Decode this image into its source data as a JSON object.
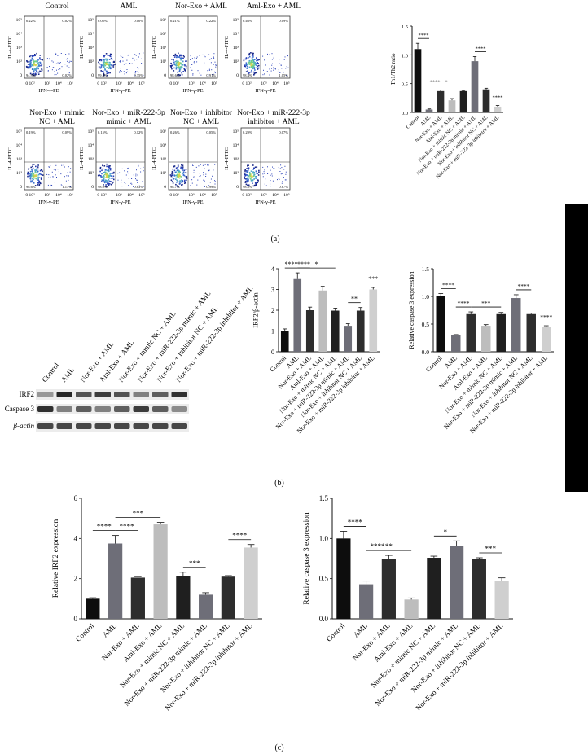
{
  "panel_letters": {
    "a": "(a)",
    "b": "(b)",
    "c": "(c)"
  },
  "flow": {
    "ylabel": "IL-4-FITC",
    "xlabel": "IFN-γ-PE",
    "xticks": [
      "0 10²",
      "10³",
      "10⁴",
      "10⁵"
    ],
    "yticks": [
      "10⁵",
      "10⁴",
      "10³",
      "10²",
      "0"
    ],
    "plots": [
      {
        "title": [
          "Control"
        ],
        "quads": [
          "0.22%",
          "0.02%",
          "94.9%",
          "0.02%"
        ]
      },
      {
        "title": [
          "AML"
        ],
        "quads": [
          "0.05%",
          "0.00%",
          "99.4%",
          "0.35%"
        ]
      },
      {
        "title": [
          "Nor-Exo + AML"
        ],
        "quads": [
          "0.21%",
          "0.22%",
          "98.6%",
          "0.91%"
        ]
      },
      {
        "title": [
          "Aml-Exo + AML"
        ],
        "quads": [
          "0.46%",
          "0.09%",
          "98.4%",
          "1.05%"
        ]
      },
      {
        "title": [
          "Nor-Exo + mimic",
          "NC + AML"
        ],
        "quads": [
          "0.19%",
          "0.09%",
          "98.6%",
          "1.13%"
        ]
      },
      {
        "title": [
          "Nor-Exo + miR-222-3p",
          "mimic + AML"
        ],
        "quads": [
          "0.15%",
          "0.12%",
          "98.9%",
          "0.83%"
        ]
      },
      {
        "title": [
          "Nor-Exo + inhibitor",
          "NC + AML"
        ],
        "quads": [
          "0.26%",
          "0.05%",
          "98.7%",
          "0.99%"
        ]
      },
      {
        "title": [
          "Nor-Exo + miR-222-3p",
          "inhibitor + AML"
        ],
        "quads": [
          "0.29%",
          "0.07%",
          "98.8%",
          "0.87%"
        ]
      }
    ]
  },
  "western": {
    "lanes": [
      "Control",
      "AML",
      "Nor-Exo + AML",
      "Aml-Exo + AML",
      "Nor-Exo + mimic NC + AML",
      "Nor-Exo + miR-222-3p mimic + AML",
      "Nor-Exo + inhibitor NC + AML",
      "Nor-Exo + miR-222-3p inhibitor + AML"
    ],
    "rows": [
      "IRF2",
      "Caspase 3",
      "β-actin"
    ],
    "intensity": [
      [
        0.45,
        0.95,
        0.75,
        0.85,
        0.75,
        0.55,
        0.7,
        0.9
      ],
      [
        0.9,
        0.55,
        0.7,
        0.55,
        0.7,
        0.85,
        0.7,
        0.5
      ],
      [
        0.8,
        0.8,
        0.8,
        0.8,
        0.8,
        0.8,
        0.8,
        0.8
      ]
    ]
  },
  "chart_data": [
    {
      "id": "th1th2",
      "type": "bar",
      "ylabel": "Th1/Th2 ratio",
      "ylim": [
        0,
        1.5
      ],
      "yticks": [
        0.0,
        0.5,
        1.0,
        1.5
      ],
      "categories": [
        "Control",
        "AML",
        "Nor-Exo + AML",
        "Aml-Exo + AML",
        "Nor-Exo + mimic NC + AML",
        "Nor-Exo + miR-222-3p mimic + AML",
        "Nor-Exo + inhibitor NC + AML",
        "Nor-Exo + miR-222-3p inhibitor + AML"
      ],
      "values": [
        1.1,
        0.05,
        0.37,
        0.21,
        0.37,
        0.89,
        0.4,
        0.1
      ],
      "errors": [
        0.1,
        0.01,
        0.02,
        0.03,
        0.01,
        0.08,
        0.02,
        0.02
      ],
      "colors": [
        "#0d0d0d",
        "#6e6e78",
        "#2d2d2d",
        "#bdbdbd",
        "#1f1f1f",
        "#6e6e78",
        "#2d2d2d",
        "#cfcfcf"
      ],
      "significance": [
        {
          "from": 0,
          "to": 1,
          "label": "****"
        },
        {
          "from": 1,
          "to": 2,
          "label": "****"
        },
        {
          "from": 1,
          "to": 4,
          "label": "*"
        },
        {
          "from": 5,
          "to": 6,
          "label": "****"
        },
        {
          "from": 7,
          "to": 8,
          "label": "****"
        }
      ]
    },
    {
      "id": "irf2_wb",
      "type": "bar",
      "ylabel": "IRF2/β-actin",
      "ylim": [
        0,
        4
      ],
      "yticks": [
        0,
        1,
        2,
        3,
        4
      ],
      "categories": [
        "Control",
        "AML",
        "Nor-Exo + AML",
        "Aml-Exo + AML",
        "Nor-Exo + mimic NC + AML",
        "Nor-Exo + miR-222-3p mimic + AML",
        "Nor-Exo + inhibitor NC + AML",
        "Nor-Exo + miR-222-3p inhibitor + AML"
      ],
      "values": [
        1.0,
        3.5,
        2.0,
        2.95,
        1.98,
        1.25,
        1.98,
        3.0
      ],
      "errors": [
        0.1,
        0.3,
        0.15,
        0.2,
        0.12,
        0.1,
        0.15,
        0.1
      ],
      "colors": [
        "#0d0d0d",
        "#6e6e78",
        "#2d2d2d",
        "#bdbdbd",
        "#1f1f1f",
        "#6e6e78",
        "#2d2d2d",
        "#cfcfcf"
      ],
      "significance": [
        {
          "from": 0,
          "to": 1,
          "label": "****"
        },
        {
          "from": 1,
          "to": 2,
          "label": "****"
        },
        {
          "from": 1,
          "to": 4,
          "label": "*"
        },
        {
          "from": 5,
          "to": 6,
          "label": "**"
        },
        {
          "from": 7,
          "to": 8,
          "label": "***"
        }
      ]
    },
    {
      "id": "casp3_wb",
      "type": "bar",
      "ylabel": "Relative caspase 3 expression",
      "ylim": [
        0,
        1.5
      ],
      "yticks": [
        0.0,
        0.5,
        1.0,
        1.5
      ],
      "categories": [
        "Control",
        "AML",
        "Nor-Exo + AML",
        "Aml-Exo + AML",
        "Nor-Exo + mimic NC + AML",
        "Nor-Exo + miR-222-3p mimic + AML",
        "Nor-Exo + inhibitor NC + AML",
        "Nor-Exo + miR-222-3p inhibitor + AML"
      ],
      "values": [
        1.0,
        0.3,
        0.68,
        0.47,
        0.68,
        0.97,
        0.68,
        0.45
      ],
      "errors": [
        0.05,
        0.01,
        0.04,
        0.02,
        0.03,
        0.06,
        0.02,
        0.02
      ],
      "colors": [
        "#0d0d0d",
        "#6e6e78",
        "#2d2d2d",
        "#bdbdbd",
        "#1f1f1f",
        "#6e6e78",
        "#2d2d2d",
        "#cfcfcf"
      ],
      "significance": [
        {
          "from": 0,
          "to": 1,
          "label": "****"
        },
        {
          "from": 1,
          "to": 2,
          "label": "****"
        },
        {
          "from": 2,
          "to": 4,
          "label": "***"
        },
        {
          "from": 5,
          "to": 6,
          "label": "****"
        },
        {
          "from": 7,
          "to": 8,
          "label": "****"
        }
      ]
    },
    {
      "id": "irf2_pcr",
      "type": "bar",
      "ylabel": "Relative IRF2 expression",
      "ylim": [
        0,
        6
      ],
      "yticks": [
        0,
        2,
        4,
        6
      ],
      "categories": [
        "Control",
        "AML",
        "Nor-Exo + AML",
        "Aml-Exo + AML",
        "Nor-Exo + mimic NC + AML",
        "Nor-Exo + miR-222-3p mimic + AML",
        "Nor-Exo + inhibitor NC + AML",
        "Nor-Exo + miR-222-3p inhibitor + AML"
      ],
      "values": [
        1.0,
        3.75,
        2.05,
        4.7,
        2.12,
        1.2,
        2.1,
        3.55
      ],
      "errors": [
        0.05,
        0.4,
        0.05,
        0.1,
        0.2,
        0.1,
        0.05,
        0.15
      ],
      "colors": [
        "#0d0d0d",
        "#6e6e78",
        "#2d2d2d",
        "#bdbdbd",
        "#1f1f1f",
        "#6e6e78",
        "#2d2d2d",
        "#cfcfcf"
      ],
      "significance": [
        {
          "from": 0,
          "to": 1,
          "label": "****"
        },
        {
          "from": 1,
          "to": 2,
          "label": "****"
        },
        {
          "from": 1,
          "to": 3,
          "label": "***"
        },
        {
          "from": 4,
          "to": 5,
          "label": "***"
        },
        {
          "from": 6,
          "to": 7,
          "label": "****"
        }
      ]
    },
    {
      "id": "casp3_pcr",
      "type": "bar",
      "ylabel": "Relative caspase 3 expression",
      "ylim": [
        0,
        1.5
      ],
      "yticks": [
        0.0,
        0.5,
        1.0,
        1.5
      ],
      "categories": [
        "Control",
        "AML",
        "Nor-Exo + AML",
        "Aml-Exo + AML",
        "Nor-Exo + mimic NC + AML",
        "Nor-Exo + miR-222-3p mimic + AML",
        "Nor-Exo + inhibitor NC + AML",
        "Nor-Exo + miR-222-3p inhibitor + AML"
      ],
      "values": [
        1.0,
        0.43,
        0.74,
        0.24,
        0.76,
        0.91,
        0.74,
        0.47
      ],
      "errors": [
        0.09,
        0.04,
        0.05,
        0.02,
        0.02,
        0.06,
        0.02,
        0.04
      ],
      "colors": [
        "#0d0d0d",
        "#6e6e78",
        "#2d2d2d",
        "#bdbdbd",
        "#1f1f1f",
        "#6e6e78",
        "#2d2d2d",
        "#cfcfcf"
      ],
      "significance": [
        {
          "from": 0,
          "to": 1,
          "label": "****"
        },
        {
          "from": 1,
          "to": 2,
          "label": "****"
        },
        {
          "from": 1,
          "to": 3,
          "label": "**"
        },
        {
          "from": 4,
          "to": 5,
          "label": "*"
        },
        {
          "from": 6,
          "to": 7,
          "label": "***"
        }
      ]
    }
  ]
}
